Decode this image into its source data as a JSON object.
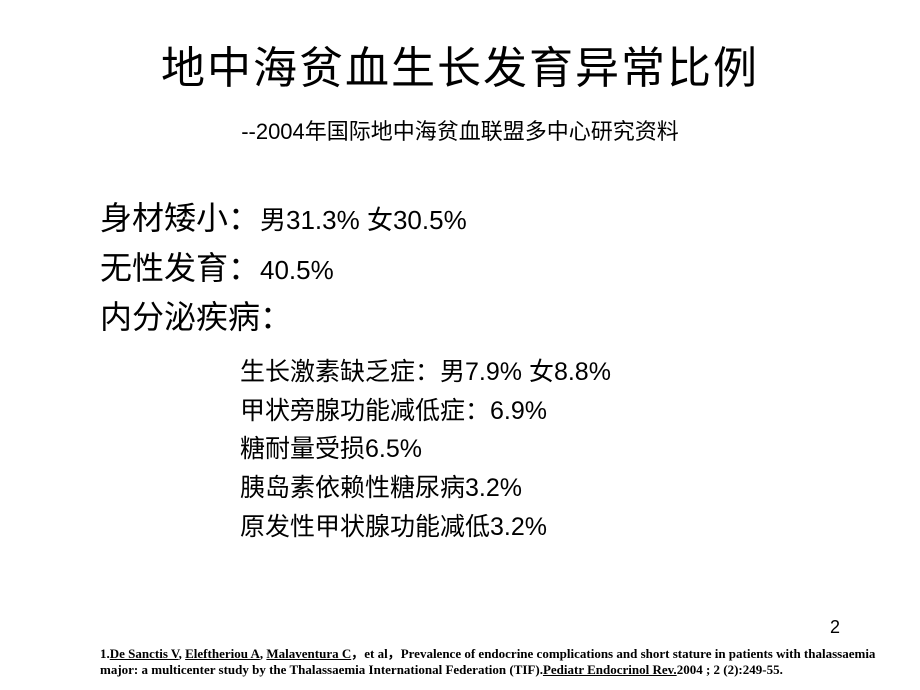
{
  "title": "地中海贫血生长发育异常比例",
  "subtitle": "--2004年国际地中海贫血联盟多中心研究资料",
  "main_lines": [
    {
      "label": "身材矮小：",
      "value": "男31.3%   女30.5%"
    },
    {
      "label": "无性发育：",
      "value": "40.5%"
    },
    {
      "label": "内分泌疾病：",
      "value": ""
    }
  ],
  "sub_lines": [
    {
      "label": "生长激素缺乏症：男",
      "value": "7.9%    女8.8%"
    },
    {
      "label": "甲状旁腺功能减低症：",
      "value": "6.9%"
    },
    {
      "label": "糖耐量受损",
      "value": "6.5%"
    },
    {
      "label": "胰岛素依赖性糖尿病",
      "value": "3.2%"
    },
    {
      "label": "原发性甲状腺功能减低",
      "value": "3.2%"
    }
  ],
  "page_number": "2",
  "citation": {
    "prefix": "1.",
    "authors_underlined": [
      "De Sanctis V",
      "Eleftheriou A",
      "Malaventura  C"
    ],
    "etal": "，et al，",
    "title_plain": "Prevalence of endocrine complications and  short stature in patients with thalassaemia major:  a multicenter study by the Thalassaemia International  Federation (TIF).",
    "journal_underlined": "Pediatr  Endocrinol  Rev.",
    "tail": "2004 ; 2 (2):249-55."
  },
  "colors": {
    "text": "#000000",
    "background": "#ffffff"
  },
  "fontsizes": {
    "title": 44,
    "subtitle": 22,
    "main": 32,
    "main_val": 26,
    "sub": 25,
    "citation": 13,
    "page_num": 18
  }
}
